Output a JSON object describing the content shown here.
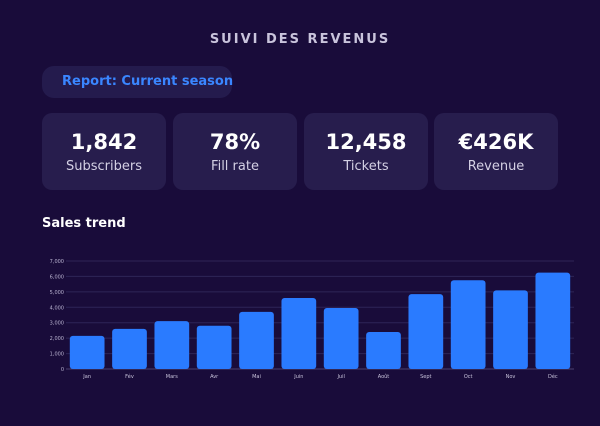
{
  "header": {
    "title": "SUIVI DES REVENUS"
  },
  "report_filter": {
    "label": "Report: Current season"
  },
  "kpis": [
    {
      "value": "1,842",
      "label": "Subscribers"
    },
    {
      "value": "78%",
      "label": "Fill rate"
    },
    {
      "value": "12,458",
      "label": "Tickets"
    },
    {
      "value": "€426K",
      "label": "Revenue"
    }
  ],
  "sales_trend": {
    "title": "Sales trend"
  },
  "colors": {
    "background": "#190c3a",
    "card": "#271d4d",
    "accent": "#3a86ff"
  },
  "chart_data": {
    "type": "bar",
    "title": "",
    "xlabel": "",
    "ylabel": "",
    "categories": [
      "Jan",
      "Fév",
      "Mars",
      "Avr",
      "Mai",
      "Juin",
      "Juil",
      "Août",
      "Sept",
      "Oct",
      "Nov",
      "Déc"
    ],
    "values": [
      2150,
      2600,
      3100,
      2800,
      3700,
      4600,
      3950,
      2400,
      4850,
      5750,
      5100,
      6250
    ],
    "ylim": [
      0,
      7000
    ],
    "yticks": [
      0,
      1000,
      2000,
      3000,
      4000,
      5000,
      6000,
      7000
    ],
    "ytick_labels": [
      "0",
      "1,000",
      "2,000",
      "3,000",
      "4,000",
      "5,000",
      "6,000",
      "7,000"
    ],
    "grid": true,
    "legend": "none",
    "bar_color": "#2a7bff"
  }
}
